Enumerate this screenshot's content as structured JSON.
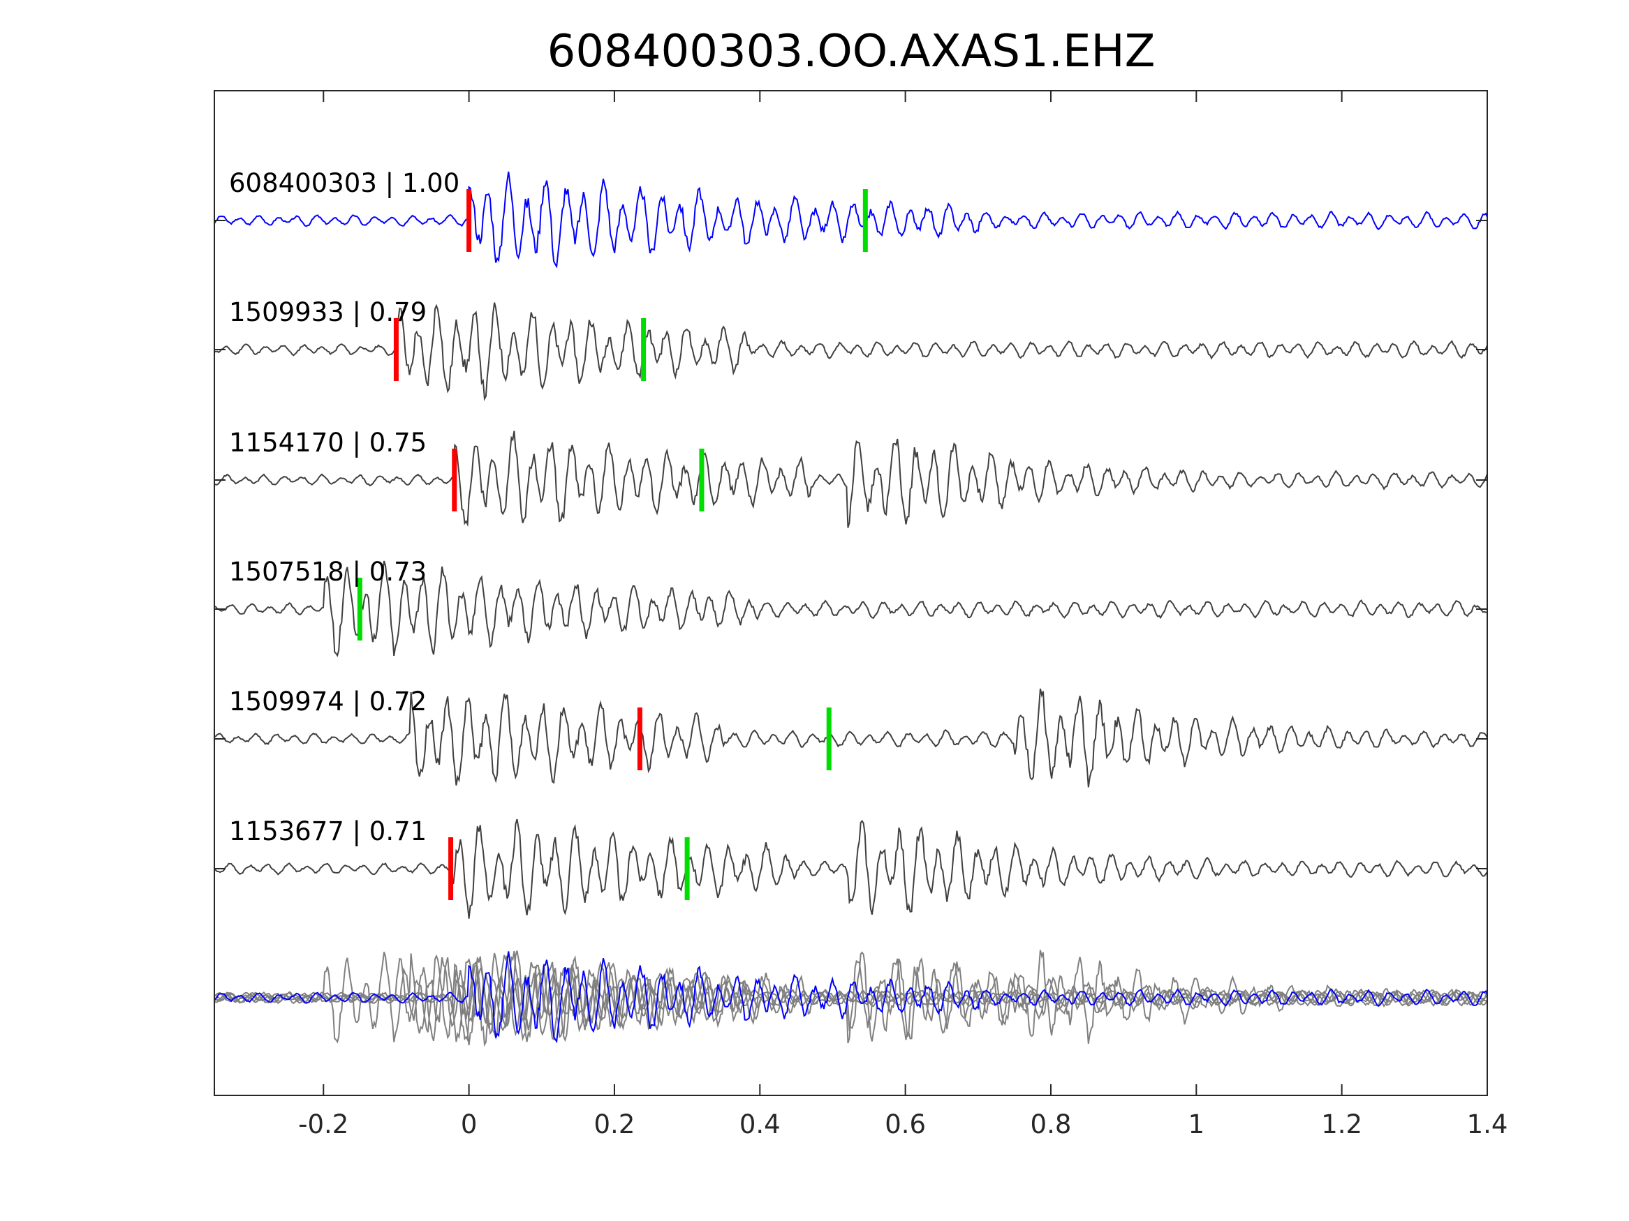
{
  "chart_data": {
    "type": "line",
    "title": "608400303.OO.AXAS1.EHZ",
    "xlabel": "",
    "ylabel": "",
    "xlim": [
      -0.35,
      1.4
    ],
    "x_ticks": [
      -0.2,
      0,
      0.2,
      0.4,
      0.6,
      0.8,
      1,
      1.2,
      1.4
    ],
    "x_tick_labels": [
      "-0.2",
      "0",
      "0.2",
      "0.4",
      "0.6",
      "0.8",
      "1",
      "1.2",
      "1.4"
    ],
    "grid": false,
    "colors": {
      "target_trace": "#0000ff",
      "neighbor_trace": "#404040",
      "overlay_trace": "#808080",
      "p_pick": "#ff0000",
      "s_pick": "#00dd00",
      "axes": "#262626"
    },
    "series": [
      {
        "id": "608400303",
        "cc": "1.00",
        "label": "608400303 | 1.00",
        "p_pick": 0.0,
        "s_pick": 0.545,
        "onset": 0.0,
        "coda_end": 0.55,
        "late_burst": null,
        "amp": 1.0,
        "seed": 3
      },
      {
        "id": "1509933",
        "cc": "0.79",
        "label": "1509933 | 0.79",
        "p_pick": -0.1,
        "s_pick": 0.24,
        "onset": -0.1,
        "coda_end": 0.24,
        "late_burst": null,
        "amp": 1.0,
        "seed": 11
      },
      {
        "id": "1154170",
        "cc": "0.75",
        "label": "1154170 | 0.75",
        "p_pick": -0.02,
        "s_pick": 0.32,
        "onset": -0.02,
        "coda_end": 0.32,
        "late_burst": 0.55,
        "amp": 1.0,
        "seed": 23
      },
      {
        "id": "1507518",
        "cc": "0.73",
        "label": "1507518 | 0.73",
        "p_pick": null,
        "s_pick": -0.15,
        "onset": -0.2,
        "coda_end": 0.25,
        "late_burst": null,
        "amp": 1.0,
        "seed": 37
      },
      {
        "id": "1509974",
        "cc": "0.72",
        "label": "1509974 | 0.72",
        "p_pick": 0.235,
        "s_pick": 0.495,
        "onset": -0.08,
        "coda_end": 0.2,
        "late_burst": 0.78,
        "amp": 1.0,
        "seed": 51
      },
      {
        "id": "1153677",
        "cc": "0.71",
        "label": "1153677 | 0.71",
        "p_pick": -0.025,
        "s_pick": 0.3,
        "onset": -0.025,
        "coda_end": 0.3,
        "late_burst": 0.55,
        "amp": 1.0,
        "seed": 67
      }
    ],
    "overlay": {
      "description_visible": false,
      "includes_all_series": true
    }
  }
}
